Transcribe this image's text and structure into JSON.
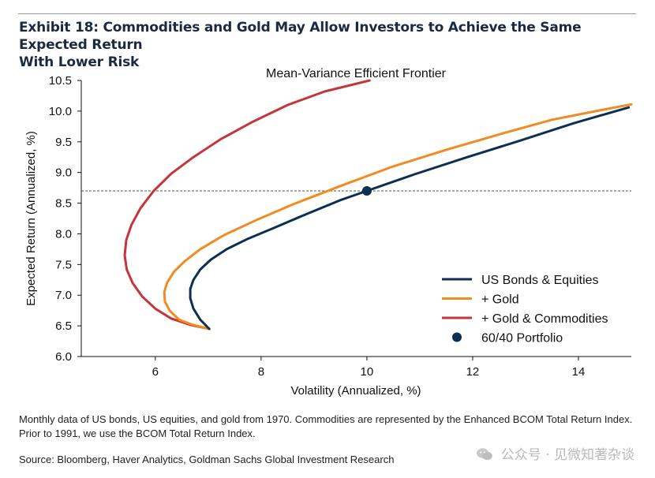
{
  "exhibit": {
    "title_line1": "Exhibit 18: Commodities and Gold May Allow Investors to Achieve the Same Expected Return",
    "title_line2": "With Lower Risk"
  },
  "chart_data": {
    "type": "line",
    "title": "Mean-Variance Efficient Frontier",
    "xlabel": "Volatility (Annualized, %)",
    "ylabel": "Expected Return (Annualized, %)",
    "xlim": [
      4.6,
      15.0
    ],
    "ylim": [
      6.0,
      10.5
    ],
    "xticks": [
      6,
      8,
      10,
      12,
      14
    ],
    "yticks": [
      6.0,
      6.5,
      7.0,
      7.5,
      8.0,
      8.5,
      9.0,
      9.5,
      10.0,
      10.5
    ],
    "xtick_labels": [
      "6",
      "8",
      "10",
      "12",
      "14"
    ],
    "ytick_labels": [
      "6.0",
      "6.5",
      "7.0",
      "7.5",
      "8.0",
      "8.5",
      "9.0",
      "9.5",
      "10.0",
      "10.5"
    ],
    "grid": false,
    "legend_position": "lower-right",
    "series": [
      {
        "name": "US Bonds & Equities",
        "color": "#0d2f52",
        "x": [
          7.02,
          6.85,
          6.72,
          6.66,
          6.66,
          6.72,
          6.85,
          7.05,
          7.35,
          7.75,
          8.25,
          8.85,
          9.5,
          10.0,
          10.9,
          11.9,
          12.9,
          13.9,
          14.95
        ],
        "y": [
          6.45,
          6.6,
          6.78,
          6.95,
          7.1,
          7.25,
          7.42,
          7.58,
          7.75,
          7.92,
          8.1,
          8.32,
          8.55,
          8.7,
          8.97,
          9.25,
          9.52,
          9.8,
          10.06
        ]
      },
      {
        "name": "+ Gold",
        "color": "#f28b22",
        "x": [
          7.02,
          6.7,
          6.45,
          6.27,
          6.18,
          6.17,
          6.22,
          6.35,
          6.55,
          6.85,
          7.3,
          7.9,
          8.6,
          9.5,
          10.5,
          11.5,
          12.5,
          13.5,
          14.5,
          15.0
        ],
        "y": [
          6.45,
          6.52,
          6.6,
          6.75,
          6.9,
          7.05,
          7.2,
          7.38,
          7.55,
          7.75,
          7.98,
          8.22,
          8.48,
          8.78,
          9.1,
          9.37,
          9.62,
          9.86,
          10.03,
          10.11
        ]
      },
      {
        "name": "+ Gold & Commodities",
        "color": "#c4363a",
        "x": [
          7.02,
          6.65,
          6.3,
          6.0,
          5.75,
          5.57,
          5.46,
          5.42,
          5.45,
          5.55,
          5.72,
          5.97,
          6.3,
          6.72,
          7.25,
          7.85,
          8.5,
          9.2,
          10.05
        ],
        "y": [
          6.45,
          6.52,
          6.62,
          6.78,
          6.98,
          7.2,
          7.42,
          7.65,
          7.9,
          8.15,
          8.42,
          8.7,
          8.98,
          9.25,
          9.55,
          9.83,
          10.1,
          10.32,
          10.5
        ]
      }
    ],
    "points": [
      {
        "name": "60/40 Portfolio",
        "x": 10.0,
        "y": 8.7,
        "color": "#0d2f52"
      }
    ],
    "reference_line": {
      "y": 8.7,
      "style": "dashed",
      "color": "#555555"
    }
  },
  "footnote": {
    "note": "Monthly data of US bonds, US equities, and gold from 1970. Commodities are represented by the Enhanced BCOM Total Return Index. Prior to 1991, we use the BCOM Total Return Index.",
    "source": "Source: Bloomberg, Haver Analytics, Goldman Sachs Global Investment Research"
  },
  "watermark": {
    "text": "公众号 · 见微知著杂谈",
    "icon": "wechat-icon"
  }
}
